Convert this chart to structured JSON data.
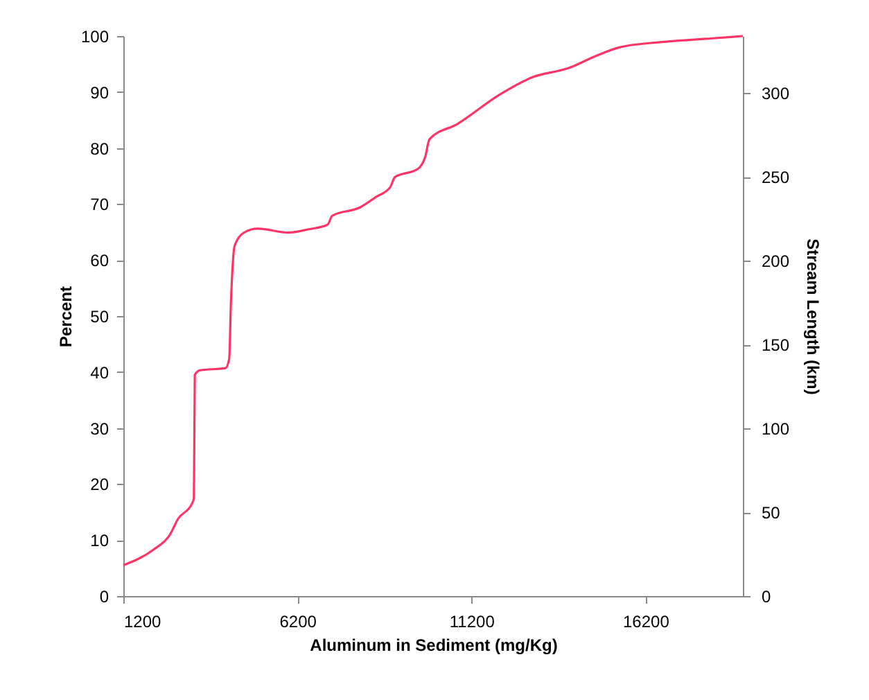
{
  "chart_data": {
    "type": "line",
    "xlabel": "Aluminum in Sediment (mg/Kg)",
    "ylabel": "Percent",
    "y2label": "Stream Length (km)",
    "xlim": [
      1200,
      19000
    ],
    "xticks": [
      1200,
      6200,
      11200,
      16200
    ],
    "ylim": [
      0,
      100
    ],
    "yticks": [
      0,
      10,
      20,
      30,
      40,
      50,
      60,
      70,
      80,
      90,
      100
    ],
    "y2lim": [
      0,
      334
    ],
    "y2ticks": [
      0,
      50,
      100,
      150,
      200,
      250,
      300
    ],
    "grid": false,
    "marker": "none",
    "line_style": "solid",
    "series": [
      {
        "color": "#ff3366",
        "x": [
          1200,
          2067,
          2533,
          2773,
          3173,
          3227,
          3253,
          3400,
          4133,
          4240,
          4293,
          4400,
          4667,
          5067,
          5933,
          6533,
          7067,
          7200,
          8000,
          8467,
          8867,
          9000,
          9667,
          9867,
          10000,
          10800,
          12000,
          12933,
          14000,
          14800,
          15467,
          16800,
          18133,
          19000
        ],
        "values": [
          5.5,
          8.3,
          10.9,
          13.8,
          16.5,
          17.5,
          39.5,
          40.3,
          40.7,
          42.3,
          52.7,
          62.6,
          64.9,
          65.6,
          64.9,
          65.5,
          66.3,
          67.9,
          69.4,
          71.3,
          73.0,
          74.8,
          76.3,
          78.3,
          81.6,
          84.3,
          89.5,
          92.6,
          94.3,
          96.5,
          98.0,
          99.0,
          99.6,
          100
        ]
      }
    ]
  }
}
